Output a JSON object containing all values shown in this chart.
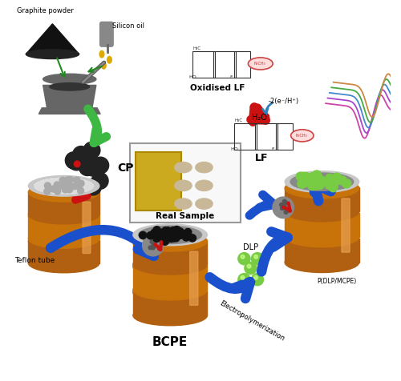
{
  "bg_color": "#ffffff",
  "labels": {
    "graphite_powder": "Graphite powder",
    "silicon_oil": "Silicon oil",
    "cp": "CP",
    "teflon_tube": "Teflon tube",
    "real_sample": "Real Sample",
    "bcpe": "BCPE",
    "dlp": "DLP",
    "electropolymerization": "Electropolymerization",
    "p_dlp_mcpe": "P(DLP/MCPE)",
    "lf": "LF",
    "oxidised_lf": "Oxidised LF",
    "minus2eh": "-2(e⁻/H⁺)",
    "h2o": "H₂O"
  },
  "green_arrow": "#3cb843",
  "red_arrow": "#cc1111",
  "blue_arrow": "#1a50cc",
  "cyan_arrow": "#3080bb",
  "body_color": "#c8720a",
  "body_color2": "#b06010",
  "top_light": "#dddddd",
  "top_dark": "#333333",
  "green_dot": "#77cc44",
  "black_dot": "#111111",
  "gray_dot": "#999999",
  "mortar_color": "#666666",
  "mortar_inner": "#333333",
  "graphite_pile": "#1a1a1a",
  "cv_colors": [
    "#cc44aa",
    "#aa44cc",
    "#4488cc",
    "#44aa44",
    "#cc8844"
  ],
  "chem_oval": "#cc4444",
  "chem_oval_fill": "#ffdddd"
}
